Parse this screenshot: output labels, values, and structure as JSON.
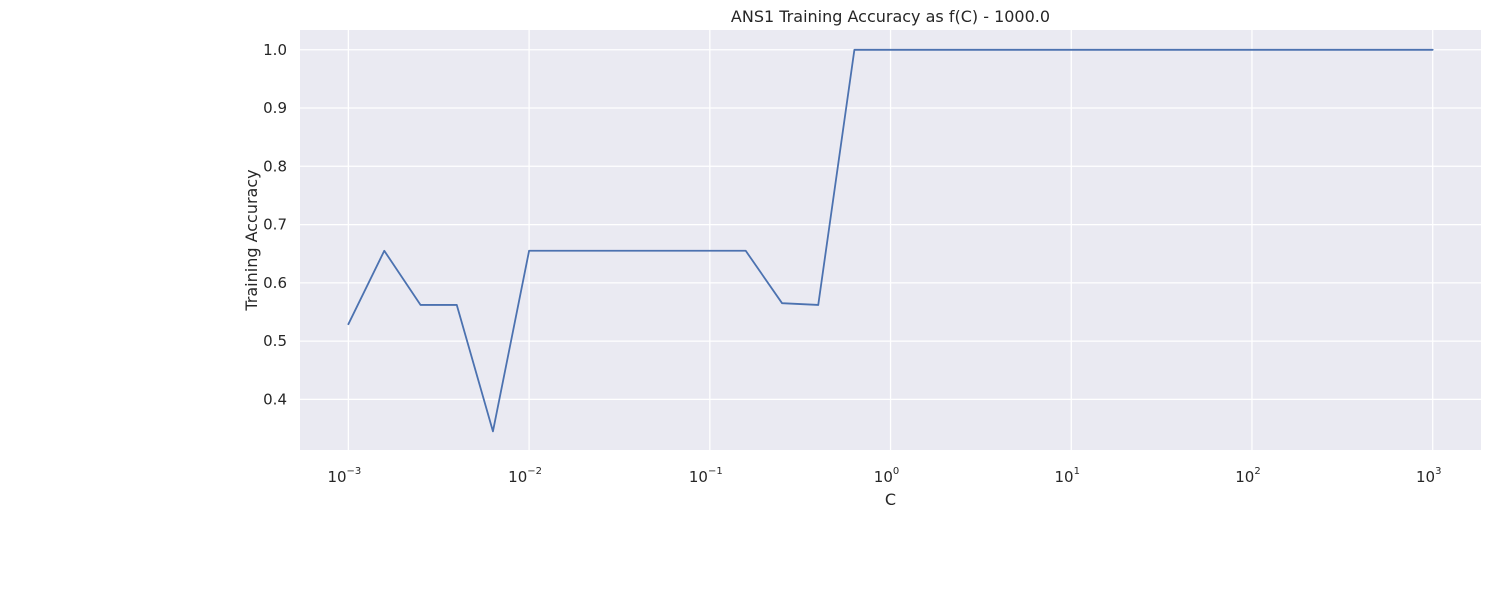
{
  "chart_data": {
    "type": "line",
    "title": "ANS1 Training Accuracy as f(C) - 1000.0",
    "xlabel": "C",
    "ylabel": "Training Accuracy",
    "xscale": "log",
    "xlim": [
      0.00054,
      1850
    ],
    "ylim": [
      0.313,
      1.034
    ],
    "grid": true,
    "xticks": [
      {
        "base": "10",
        "exp": "−3",
        "value": 0.001
      },
      {
        "base": "10",
        "exp": "−2",
        "value": 0.01
      },
      {
        "base": "10",
        "exp": "−1",
        "value": 0.1
      },
      {
        "base": "10",
        "exp": "0",
        "value": 1
      },
      {
        "base": "10",
        "exp": "1",
        "value": 10
      },
      {
        "base": "10",
        "exp": "2",
        "value": 100
      },
      {
        "base": "10",
        "exp": "3",
        "value": 1000
      }
    ],
    "yticks": [
      {
        "label": "0.4",
        "value": 0.4
      },
      {
        "label": "0.5",
        "value": 0.5
      },
      {
        "label": "0.6",
        "value": 0.6
      },
      {
        "label": "0.7",
        "value": 0.7
      },
      {
        "label": "0.8",
        "value": 0.8
      },
      {
        "label": "0.9",
        "value": 0.9
      },
      {
        "label": "1.0",
        "value": 1.0
      }
    ],
    "series": [
      {
        "color": "#4c72b0",
        "x": [
          0.001,
          0.00158,
          0.00251,
          0.00398,
          0.00631,
          0.01,
          0.0158,
          0.0251,
          0.0398,
          0.0631,
          0.1,
          0.158,
          0.251,
          0.398,
          0.631,
          1.0,
          1.58,
          2.51,
          3.98,
          6.31,
          10,
          15.8,
          25.1,
          39.8,
          63.1,
          100,
          158,
          251,
          398,
          631,
          1000
        ],
        "y": [
          0.529,
          0.655,
          0.562,
          0.562,
          0.345,
          0.655,
          0.655,
          0.655,
          0.655,
          0.655,
          0.655,
          0.655,
          0.565,
          0.562,
          1.0,
          1.0,
          1.0,
          1.0,
          1.0,
          1.0,
          1.0,
          1.0,
          1.0,
          1.0,
          1.0,
          1.0,
          1.0,
          1.0,
          1.0,
          1.0,
          1.0
        ]
      }
    ]
  }
}
